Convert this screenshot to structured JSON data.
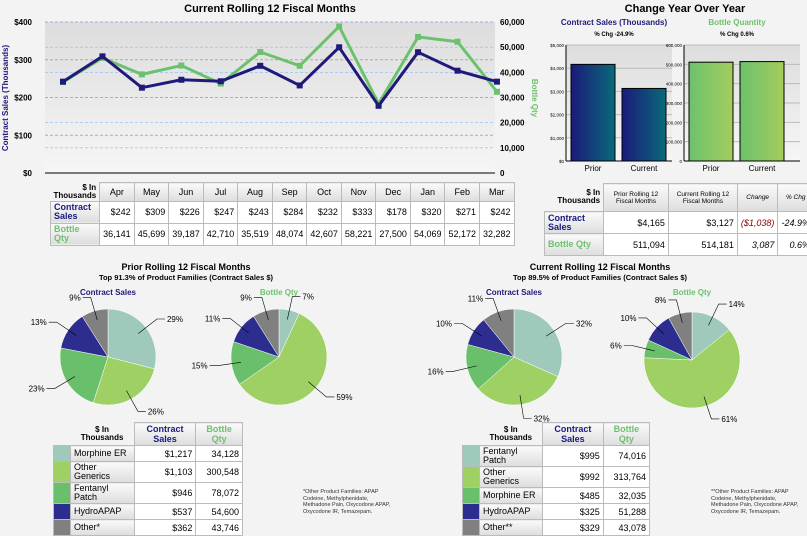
{
  "colors": {
    "contract": "#1f1a7a",
    "bottle": "#6cc26c",
    "morphine": "#9ec9bb",
    "generics": "#9ed064",
    "fentanyl": "#6abf6a",
    "hydro": "#2d2d8f",
    "other": "#808080"
  },
  "chart_data": [
    {
      "type": "line",
      "title": "Current Rolling 12 Fiscal Months",
      "ylabel": "Contract Sales (Thousands)",
      "y2label": "Bottle Qty",
      "categories": [
        "Apr",
        "May",
        "Jun",
        "Jul",
        "Aug",
        "Sep",
        "Oct",
        "Nov",
        "Dec",
        "Jan",
        "Feb",
        "Mar"
      ],
      "ylim": [
        0,
        400
      ],
      "y2lim": [
        0,
        60000
      ],
      "yticks": [
        "$0",
        "$100",
        "$200",
        "$300",
        "$400"
      ],
      "y2ticks": [
        "0",
        "10,000",
        "20,000",
        "30,000",
        "40,000",
        "50,000",
        "60,000"
      ],
      "series": [
        {
          "name": "Contract Sales",
          "values": [
            242,
            309,
            226,
            247,
            243,
            284,
            232,
            333,
            178,
            320,
            271,
            242
          ]
        },
        {
          "name": "Bottle Qty",
          "values": [
            36141,
            45699,
            39187,
            42710,
            35519,
            48074,
            42607,
            58221,
            27500,
            54069,
            52172,
            32282
          ]
        }
      ]
    },
    {
      "type": "bar",
      "title": "Contract Sales (Thousands)",
      "subtitle": "% Chg -24.9%",
      "categories": [
        "Prior",
        "Current"
      ],
      "values": [
        4165,
        3127
      ],
      "ylim": [
        0,
        5000
      ],
      "yticks": [
        "$0",
        "$1,000",
        "$2,000",
        "$3,000",
        "$4,000",
        "$5,000"
      ]
    },
    {
      "type": "bar",
      "title": "Bottle Quantity",
      "subtitle": "% Chg 0.6%",
      "categories": [
        "Prior",
        "Current"
      ],
      "values": [
        511094,
        514181
      ],
      "ylim": [
        0,
        600000
      ],
      "yticks": [
        "0",
        "100,000",
        "200,000",
        "300,000",
        "400,000",
        "500,000",
        "600,000"
      ]
    },
    {
      "type": "pie",
      "title": "Contract Sales",
      "group": "prior",
      "labels": [
        "Morphine ER",
        "Other Generics",
        "Fentanyl Patch",
        "HydroAPAP",
        "Other*"
      ],
      "values": [
        29,
        26,
        23,
        13,
        9
      ]
    },
    {
      "type": "pie",
      "title": "Bottle Qty",
      "group": "prior",
      "labels": [
        "Morphine ER",
        "Other Generics",
        "Fentanyl Patch",
        "HydroAPAP",
        "Other*"
      ],
      "values": [
        7,
        59,
        15,
        11,
        9
      ]
    },
    {
      "type": "pie",
      "title": "Contract Sales",
      "group": "current",
      "labels": [
        "Fentanyl Patch",
        "Other Generics",
        "Morphine ER",
        "HydroAPAP",
        "Other**"
      ],
      "values": [
        32,
        32,
        16,
        10,
        11
      ]
    },
    {
      "type": "pie",
      "title": "Bottle Qty",
      "group": "current",
      "labels": [
        "Fentanyl Patch",
        "Other Generics",
        "Morphine ER",
        "HydroAPAP",
        "Other**"
      ],
      "values": [
        14,
        61,
        6,
        10,
        8
      ]
    }
  ],
  "yoy": {
    "title": "Change Year Over Year"
  },
  "monthly_table": {
    "corner": "$ In Thousands",
    "row1": "Contract Sales",
    "row2": "Bottle Qty",
    "sales": [
      "$242",
      "$309",
      "$226",
      "$247",
      "$243",
      "$284",
      "$232",
      "$333",
      "$178",
      "$320",
      "$271",
      "$242"
    ],
    "qty": [
      "36,141",
      "45,699",
      "39,187",
      "42,710",
      "35,519",
      "48,074",
      "42,607",
      "58,221",
      "27,500",
      "54,069",
      "52,172",
      "32,282"
    ]
  },
  "yoy_table": {
    "corner": "$ In Thousands",
    "cols": [
      "Prior Rolling 12 Fiscal Months",
      "Current Rolling 12 Fiscal Months",
      "Change",
      "% Chg"
    ],
    "rows": [
      {
        "label": "Contract Sales",
        "v": [
          "$4,165",
          "$3,127",
          "($1,038)",
          "-24.9%"
        ]
      },
      {
        "label": "Bottle Qty",
        "v": [
          "511,094",
          "514,181",
          "3,087",
          "0.6%"
        ]
      }
    ]
  },
  "prior": {
    "title": "Prior Rolling 12 Fiscal Months",
    "subtitle": "Top 91.3% of Product Families (Contract Sales $)",
    "table": {
      "corner": "$ In Thousands",
      "c1": "Contract Sales",
      "c2": "Bottle Qty",
      "rows": [
        {
          "name": "Morphine ER",
          "sales": "$1,217",
          "qty": "34,128",
          "color": "#9ec9bb"
        },
        {
          "name": "Other Generics",
          "sales": "$1,103",
          "qty": "300,548",
          "color": "#9ed064"
        },
        {
          "name": "Fentanyl Patch",
          "sales": "$946",
          "qty": "78,072",
          "color": "#6abf6a"
        },
        {
          "name": "HydroAPAP",
          "sales": "$537",
          "qty": "54,600",
          "color": "#2d2d8f"
        },
        {
          "name": "Other*",
          "sales": "$362",
          "qty": "43,746",
          "color": "#808080"
        }
      ]
    },
    "note": "*Other Product Families: APAP Codeine, Methylphenidate, Methadone Pain, Oxycodone APAP, Oxycodone IR, Temazepam."
  },
  "current": {
    "title": "Current Rolling 12 Fiscal Months",
    "subtitle": "Top 89.5% of Product Families (Contract Sales $)",
    "table": {
      "corner": "$ In Thousands",
      "c1": "Contract Sales",
      "c2": "Bottle Qty",
      "rows": [
        {
          "name": "Fentanyl Patch",
          "sales": "$995",
          "qty": "74,016",
          "color": "#9ec9bb"
        },
        {
          "name": "Other Generics",
          "sales": "$992",
          "qty": "313,764",
          "color": "#9ed064"
        },
        {
          "name": "Morphine ER",
          "sales": "$485",
          "qty": "32,035",
          "color": "#6abf6a"
        },
        {
          "name": "HydroAPAP",
          "sales": "$325",
          "qty": "51,288",
          "color": "#2d2d8f"
        },
        {
          "name": "Other**",
          "sales": "$329",
          "qty": "43,078",
          "color": "#808080"
        }
      ]
    },
    "note": "**Other Product Families: APAP Codeine, Methylphenidate, Methadone Pain, Oxycodone APAP, Oxycodone IR, Temazepam."
  }
}
